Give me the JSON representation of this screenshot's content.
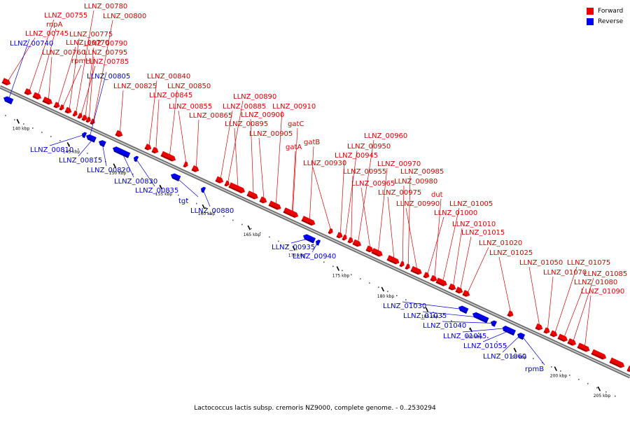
{
  "colors": {
    "forward": "#ee0000",
    "forward_dark": "#a00000",
    "reverse": "#0000ee",
    "reverse_dark": "#000090",
    "forward_label": "#e00000",
    "reverse_label": "#0000e0",
    "axis": "#808080"
  },
  "legend": {
    "forward_label": "Forward",
    "reverse_label": "Reverse"
  },
  "caption": "Lactococcus lactis subsp. cremoris NZ9000, complete genome. - 0..2530294",
  "scale_ticks": [
    "140 kbp",
    "145 kbp",
    "150 kbp",
    "155 kbp",
    "160 kbp",
    "165 kbp",
    "170 kbp",
    "175 kbp",
    "180 kbp",
    "185 kbp",
    "190 kbp",
    "195 kbp",
    "200 kbp",
    "205 kbp"
  ],
  "forward_genes": [
    {
      "name": "LLNZ_00745"
    },
    {
      "name": "LLNZ_00755"
    },
    {
      "name": "rnpA"
    },
    {
      "name": "LLNZ_00760"
    },
    {
      "name": "LLNZ_00770"
    },
    {
      "name": "rpmH"
    },
    {
      "name": "LLNZ_00775"
    },
    {
      "name": "LLNZ_00780"
    },
    {
      "name": "LLNZ_00785"
    },
    {
      "name": "LLNZ_00790"
    },
    {
      "name": "LLNZ_00795"
    },
    {
      "name": "LLNZ_00800"
    },
    {
      "name": "LLNZ_00825"
    },
    {
      "name": "LLNZ_00840"
    },
    {
      "name": "LLNZ_00845"
    },
    {
      "name": "LLNZ_00850"
    },
    {
      "name": "LLNZ_00855"
    },
    {
      "name": "LLNZ_00865"
    },
    {
      "name": "LLNZ_00885"
    },
    {
      "name": "LLNZ_00890"
    },
    {
      "name": "LLNZ_00895"
    },
    {
      "name": "LLNZ_00900"
    },
    {
      "name": "LLNZ_00905"
    },
    {
      "name": "LLNZ_00910"
    },
    {
      "name": "gatA"
    },
    {
      "name": "gatC"
    },
    {
      "name": "gatB"
    },
    {
      "name": "LLNZ_00930"
    },
    {
      "name": "LLNZ_00945"
    },
    {
      "name": "LLNZ_00950"
    },
    {
      "name": "LLNZ_00955"
    },
    {
      "name": "LLNZ_00960"
    },
    {
      "name": "LLNZ_00965"
    },
    {
      "name": "LLNZ_00970"
    },
    {
      "name": "LLNZ_00975"
    },
    {
      "name": "LLNZ_00980"
    },
    {
      "name": "LLNZ_00985"
    },
    {
      "name": "LLNZ_00990"
    },
    {
      "name": "LLNZ_01000"
    },
    {
      "name": "dut"
    },
    {
      "name": "LLNZ_01005"
    },
    {
      "name": "LLNZ_01010"
    },
    {
      "name": "LLNZ_01015"
    },
    {
      "name": "LLNZ_01020"
    },
    {
      "name": "LLNZ_01025"
    },
    {
      "name": "LLNZ_01050"
    },
    {
      "name": "LLNZ_01070"
    },
    {
      "name": "LLNZ_01075"
    },
    {
      "name": "LLNZ_01080"
    },
    {
      "name": "LLNZ_01085"
    },
    {
      "name": "LLNZ_01090"
    }
  ],
  "reverse_genes": [
    {
      "name": "LLNZ_00740"
    },
    {
      "name": "LLNZ_00805"
    },
    {
      "name": "LLNZ_00810"
    },
    {
      "name": "LLNZ_00815"
    },
    {
      "name": "LLNZ_00820"
    },
    {
      "name": "LLNZ_00830"
    },
    {
      "name": "LLNZ_00835"
    },
    {
      "name": "tgt"
    },
    {
      "name": "LLNZ_00880"
    },
    {
      "name": "LLNZ_00935"
    },
    {
      "name": "LLNZ_00940"
    },
    {
      "name": "LLNZ_01030"
    },
    {
      "name": "LLNZ_01035"
    },
    {
      "name": "LLNZ_01040"
    },
    {
      "name": "LLNZ_01045"
    },
    {
      "name": "LLNZ_01055"
    },
    {
      "name": "LLNZ_01060"
    },
    {
      "name": "rpmB"
    }
  ]
}
